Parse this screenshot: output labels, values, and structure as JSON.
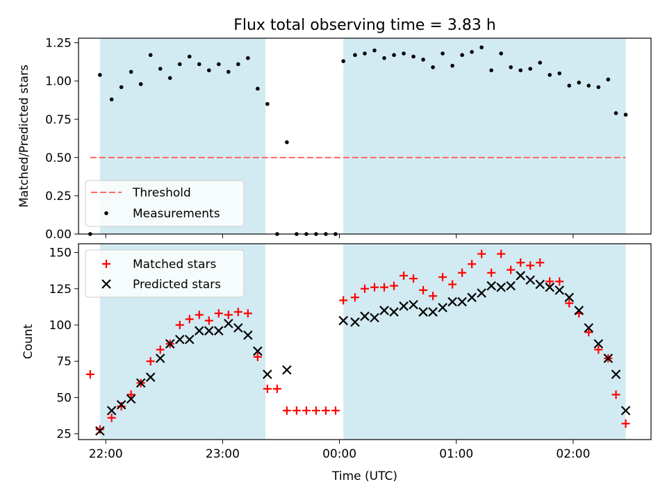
{
  "figure_title": "Flux total observing time = 3.83 h",
  "colors": {
    "shade": "#add8e6",
    "threshold": "#ff6666",
    "measurement": "#000000",
    "matched": "#ff0000",
    "predicted": "#000000"
  },
  "chart_data": [
    {
      "type": "scatter",
      "title": "Flux total observing time = 3.83 h",
      "xlabel": "",
      "ylabel": "Matched/Predicted stars",
      "xlim": [
        "21:46",
        "02:40"
      ],
      "ylim": [
        0,
        1.28
      ],
      "y_ticks": [
        "0.00",
        "0.25",
        "0.50",
        "0.75",
        "1.00",
        "1.25"
      ],
      "x_ticks": [
        "22:00",
        "23:00",
        "00:00",
        "01:00",
        "02:00"
      ],
      "x_ticklabels_visible": false,
      "legend_position": "lower-left",
      "shaded_intervals": [
        [
          "21:57",
          "23:22"
        ],
        [
          "00:02",
          "02:27"
        ]
      ],
      "threshold": {
        "name": "Threshold",
        "value": 0.5,
        "x_range": [
          "21:52",
          "02:27"
        ],
        "style": "dashed"
      },
      "series": [
        {
          "name": "Measurements",
          "marker": "dot",
          "points": [
            [
              "21:52",
              0.0
            ],
            [
              "21:57",
              1.04
            ],
            [
              "22:03",
              0.88
            ],
            [
              "22:08",
              0.96
            ],
            [
              "22:13",
              1.06
            ],
            [
              "22:18",
              0.98
            ],
            [
              "22:23",
              1.17
            ],
            [
              "22:28",
              1.08
            ],
            [
              "22:33",
              1.02
            ],
            [
              "22:38",
              1.11
            ],
            [
              "22:43",
              1.16
            ],
            [
              "22:48",
              1.11
            ],
            [
              "22:53",
              1.07
            ],
            [
              "22:58",
              1.11
            ],
            [
              "23:03",
              1.06
            ],
            [
              "23:08",
              1.11
            ],
            [
              "23:13",
              1.15
            ],
            [
              "23:18",
              0.95
            ],
            [
              "23:23",
              0.85
            ],
            [
              "23:28",
              0.0
            ],
            [
              "23:33",
              0.6
            ],
            [
              "23:38",
              0.0
            ],
            [
              "23:43",
              0.0
            ],
            [
              "23:48",
              0.0
            ],
            [
              "23:53",
              0.0
            ],
            [
              "23:58",
              0.0
            ],
            [
              "00:02",
              1.13
            ],
            [
              "00:08",
              1.17
            ],
            [
              "00:13",
              1.18
            ],
            [
              "00:18",
              1.2
            ],
            [
              "00:23",
              1.15
            ],
            [
              "00:28",
              1.17
            ],
            [
              "00:33",
              1.18
            ],
            [
              "00:38",
              1.16
            ],
            [
              "00:43",
              1.14
            ],
            [
              "00:48",
              1.09
            ],
            [
              "00:53",
              1.18
            ],
            [
              "00:58",
              1.1
            ],
            [
              "01:03",
              1.17
            ],
            [
              "01:08",
              1.19
            ],
            [
              "01:13",
              1.22
            ],
            [
              "01:18",
              1.07
            ],
            [
              "01:23",
              1.18
            ],
            [
              "01:28",
              1.09
            ],
            [
              "01:33",
              1.07
            ],
            [
              "01:38",
              1.08
            ],
            [
              "01:43",
              1.12
            ],
            [
              "01:48",
              1.04
            ],
            [
              "01:53",
              1.05
            ],
            [
              "01:58",
              0.97
            ],
            [
              "02:03",
              0.99
            ],
            [
              "02:08",
              0.97
            ],
            [
              "02:13",
              0.96
            ],
            [
              "02:18",
              1.01
            ],
            [
              "02:22",
              0.79
            ],
            [
              "02:27",
              0.78
            ]
          ]
        }
      ]
    },
    {
      "type": "scatter",
      "title": "",
      "xlabel": "Time (UTC)",
      "ylabel": "Count",
      "xlim": [
        "21:46",
        "02:40"
      ],
      "ylim": [
        21,
        156
      ],
      "y_ticks": [
        "25",
        "50",
        "75",
        "100",
        "125",
        "150"
      ],
      "x_ticks": [
        "22:00",
        "23:00",
        "00:00",
        "01:00",
        "02:00"
      ],
      "legend_position": "upper-left",
      "shaded_intervals": [
        [
          "21:57",
          "23:22"
        ],
        [
          "00:02",
          "02:27"
        ]
      ],
      "series": [
        {
          "name": "Matched stars",
          "marker": "plus",
          "points": [
            [
              "21:52",
              66
            ],
            [
              "21:57",
              28
            ],
            [
              "22:03",
              36
            ],
            [
              "22:08",
              44
            ],
            [
              "22:13",
              52
            ],
            [
              "22:18",
              60
            ],
            [
              "22:23",
              75
            ],
            [
              "22:28",
              83
            ],
            [
              "22:33",
              87
            ],
            [
              "22:38",
              100
            ],
            [
              "22:43",
              104
            ],
            [
              "22:48",
              107
            ],
            [
              "22:53",
              103
            ],
            [
              "22:58",
              108
            ],
            [
              "23:03",
              107
            ],
            [
              "23:08",
              109
            ],
            [
              "23:13",
              108
            ],
            [
              "23:18",
              78
            ],
            [
              "23:23",
              56
            ],
            [
              "23:28",
              56
            ],
            [
              "23:33",
              41
            ],
            [
              "23:38",
              41
            ],
            [
              "23:43",
              41
            ],
            [
              "23:48",
              41
            ],
            [
              "23:53",
              41
            ],
            [
              "23:58",
              41
            ],
            [
              "00:02",
              117
            ],
            [
              "00:08",
              119
            ],
            [
              "00:13",
              125
            ],
            [
              "00:18",
              126
            ],
            [
              "00:23",
              126
            ],
            [
              "00:28",
              127
            ],
            [
              "00:33",
              134
            ],
            [
              "00:38",
              132
            ],
            [
              "00:43",
              124
            ],
            [
              "00:48",
              120
            ],
            [
              "00:53",
              133
            ],
            [
              "00:58",
              128
            ],
            [
              "01:03",
              136
            ],
            [
              "01:08",
              142
            ],
            [
              "01:13",
              149
            ],
            [
              "01:18",
              136
            ],
            [
              "01:23",
              149
            ],
            [
              "01:28",
              138
            ],
            [
              "01:33",
              143
            ],
            [
              "01:38",
              141
            ],
            [
              "01:43",
              143
            ],
            [
              "01:48",
              130
            ],
            [
              "01:53",
              130
            ],
            [
              "01:58",
              115
            ],
            [
              "02:03",
              108
            ],
            [
              "02:08",
              95
            ],
            [
              "02:13",
              83
            ],
            [
              "02:18",
              77
            ],
            [
              "02:22",
              52
            ],
            [
              "02:27",
              32
            ]
          ]
        },
        {
          "name": "Predicted stars",
          "marker": "x",
          "points": [
            [
              "21:57",
              27
            ],
            [
              "22:03",
              41
            ],
            [
              "22:08",
              45
            ],
            [
              "22:13",
              49
            ],
            [
              "22:18",
              60
            ],
            [
              "22:23",
              64
            ],
            [
              "22:28",
              77
            ],
            [
              "22:33",
              87
            ],
            [
              "22:38",
              90
            ],
            [
              "22:43",
              90
            ],
            [
              "22:48",
              96
            ],
            [
              "22:53",
              96
            ],
            [
              "22:58",
              96
            ],
            [
              "23:03",
              101
            ],
            [
              "23:08",
              98
            ],
            [
              "23:13",
              93
            ],
            [
              "23:18",
              82
            ],
            [
              "23:23",
              66
            ],
            [
              "23:33",
              69
            ],
            [
              "00:02",
              103
            ],
            [
              "00:08",
              102
            ],
            [
              "00:13",
              106
            ],
            [
              "00:18",
              105
            ],
            [
              "00:23",
              110
            ],
            [
              "00:28",
              109
            ],
            [
              "00:33",
              113
            ],
            [
              "00:38",
              114
            ],
            [
              "00:43",
              109
            ],
            [
              "00:48",
              109
            ],
            [
              "00:53",
              112
            ],
            [
              "00:58",
              116
            ],
            [
              "01:03",
              116
            ],
            [
              "01:08",
              119
            ],
            [
              "01:13",
              122
            ],
            [
              "01:18",
              127
            ],
            [
              "01:23",
              126
            ],
            [
              "01:28",
              127
            ],
            [
              "01:33",
              134
            ],
            [
              "01:38",
              131
            ],
            [
              "01:43",
              128
            ],
            [
              "01:48",
              126
            ],
            [
              "01:53",
              124
            ],
            [
              "01:58",
              119
            ],
            [
              "02:03",
              110
            ],
            [
              "02:08",
              98
            ],
            [
              "02:13",
              87
            ],
            [
              "02:18",
              77
            ],
            [
              "02:22",
              66
            ],
            [
              "02:27",
              41
            ]
          ]
        }
      ]
    }
  ]
}
